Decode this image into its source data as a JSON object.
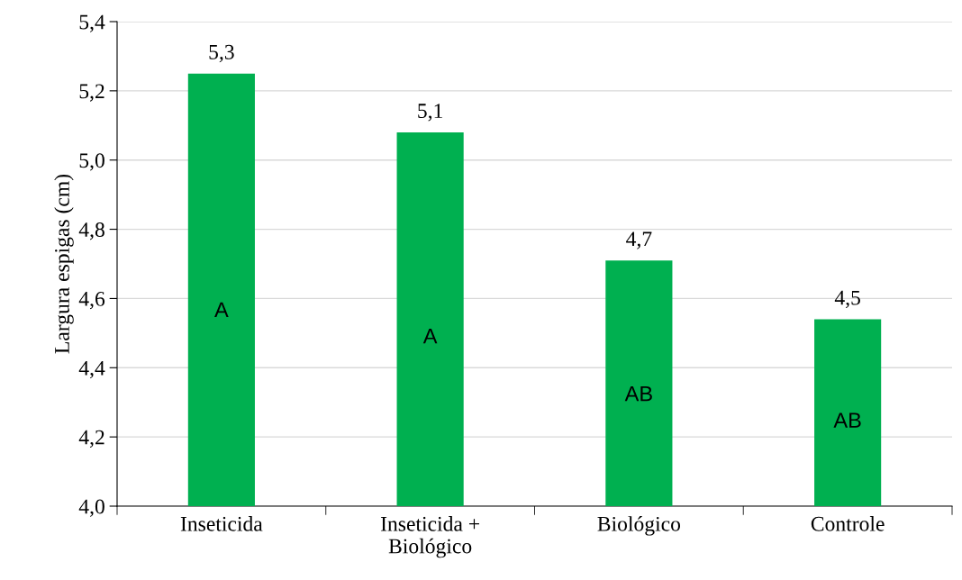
{
  "chart_data": {
    "type": "bar",
    "ylabel": "Largura espigas (cm)",
    "categories": [
      "Inseticida",
      "Inseticida +\nBiológico",
      "Biológico",
      "Controle"
    ],
    "values": [
      5.25,
      5.08,
      4.71,
      4.54
    ],
    "value_labels": [
      "5,3",
      "5,1",
      "4,7",
      "4,5"
    ],
    "color": "#00b050",
    "ylim": [
      4.0,
      5.4
    ],
    "yticks": [
      {
        "value": 4.0,
        "label": "4,0"
      },
      {
        "value": 4.2,
        "label": "4,2"
      },
      {
        "value": 4.4,
        "label": "4,4"
      },
      {
        "value": 4.6,
        "label": "4,6"
      },
      {
        "value": 4.8,
        "label": "4,8"
      },
      {
        "value": 5.0,
        "label": "5,0"
      },
      {
        "value": 5.2,
        "label": "5,2"
      },
      {
        "value": 5.4,
        "label": "5,4"
      }
    ],
    "grid": "y",
    "annotations": [
      "A",
      "A",
      "AB",
      "AB"
    ]
  }
}
